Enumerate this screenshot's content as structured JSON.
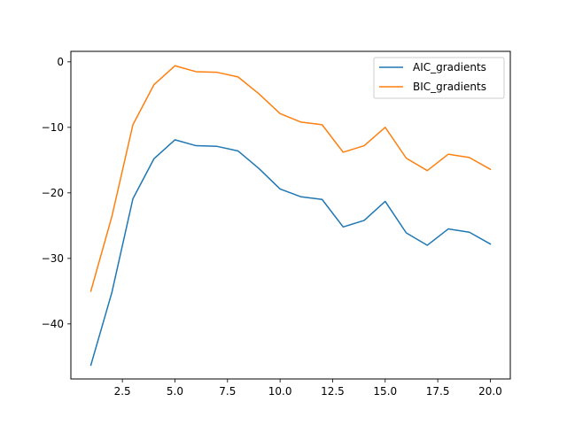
{
  "chart_data": {
    "type": "line",
    "title": "",
    "xlabel": "",
    "ylabel": "",
    "x": [
      1,
      2,
      3,
      4,
      5,
      6,
      7,
      8,
      9,
      10,
      11,
      12,
      13,
      14,
      15,
      16,
      17,
      18,
      19,
      20
    ],
    "xlim": [
      0.05,
      20.95
    ],
    "ylim": [
      -48.4,
      1.6
    ],
    "xticks": [
      2.5,
      5.0,
      7.5,
      10.0,
      12.5,
      15.0,
      17.5,
      20.0
    ],
    "xtick_labels": [
      "2.5",
      "5.0",
      "7.5",
      "10.0",
      "12.5",
      "15.0",
      "17.5",
      "20.0"
    ],
    "yticks": [
      0,
      -10,
      -20,
      -30,
      -40
    ],
    "ytick_labels": [
      "0",
      "−10",
      "−20",
      "−30",
      "−40"
    ],
    "grid": false,
    "legend_position": "top-right",
    "series": [
      {
        "name": "AIC_gradients",
        "color": "#1f77b4",
        "values": [
          -46.3,
          -35.2,
          -20.9,
          -14.8,
          -11.9,
          -12.8,
          -12.9,
          -13.6,
          -16.3,
          -19.4,
          -20.6,
          -21.0,
          -25.2,
          -24.2,
          -21.3,
          -26.1,
          -28.0,
          -25.5,
          -26.0,
          -27.8
        ]
      },
      {
        "name": "BIC_gradients",
        "color": "#ff7f0e",
        "values": [
          -35.0,
          -23.6,
          -9.6,
          -3.5,
          -0.6,
          -1.5,
          -1.6,
          -2.3,
          -4.9,
          -7.9,
          -9.2,
          -9.6,
          -13.8,
          -12.8,
          -10.0,
          -14.7,
          -16.6,
          -14.1,
          -14.6,
          -16.4
        ]
      }
    ]
  }
}
